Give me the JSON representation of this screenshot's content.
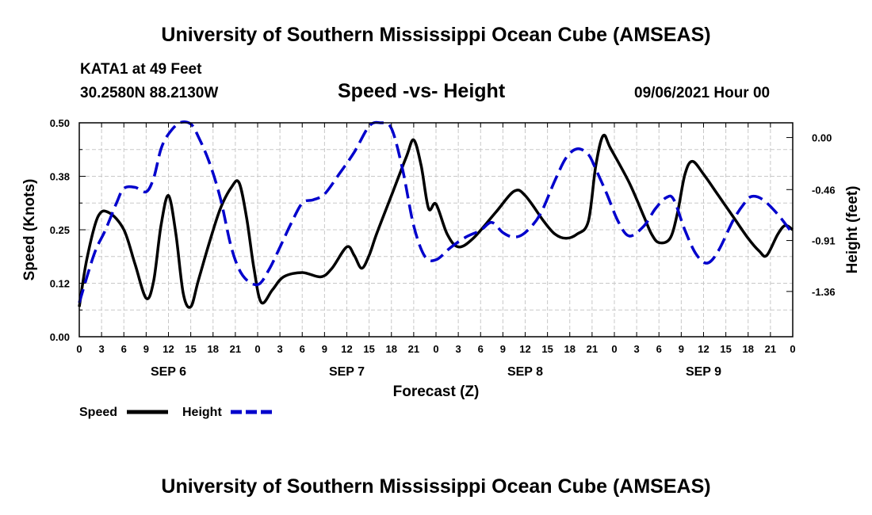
{
  "header": {
    "title": "University of Southern Mississippi Ocean Cube (AMSEAS)",
    "station": "KATA1 at 49 Feet",
    "coords": "30.2580N  88.2130W",
    "subtitle": "Speed -vs- Height",
    "datetime": "09/06/2021 Hour 00"
  },
  "footer": {
    "title": "University of Southern Mississippi Ocean Cube (AMSEAS)"
  },
  "chart_data": {
    "type": "line",
    "xlabel": "Forecast (Z)",
    "ylabel_left": "Speed (Knots)",
    "ylabel_right": "Height (feet)",
    "xlim": [
      0,
      96
    ],
    "ylim_left": [
      0,
      0.5
    ],
    "ylim_right": [
      -1.76,
      0.13
    ],
    "grid": true,
    "left_ticks": [
      {
        "value": 0.0,
        "label": "0.00"
      },
      {
        "value": 0.125,
        "label": "0.12"
      },
      {
        "value": 0.25,
        "label": "0.25"
      },
      {
        "value": 0.375,
        "label": "0.38"
      },
      {
        "value": 0.5,
        "label": "0.50"
      }
    ],
    "right_ticks": [
      {
        "value": 0.0,
        "label": "0.00"
      },
      {
        "value": -0.46,
        "label": "-0.46"
      },
      {
        "value": -0.91,
        "label": "-0.91"
      },
      {
        "value": -1.36,
        "label": "-1.36"
      }
    ],
    "x_tick_labels": [
      "0",
      "3",
      "6",
      "9",
      "12",
      "15",
      "18",
      "21",
      "0",
      "3",
      "6",
      "9",
      "12",
      "15",
      "18",
      "21",
      "0",
      "3",
      "6",
      "9",
      "12",
      "15",
      "18",
      "21",
      "0",
      "3",
      "6",
      "9",
      "12",
      "15",
      "18",
      "21",
      "0"
    ],
    "date_labels": [
      {
        "hour": 12,
        "label": "SEP 6"
      },
      {
        "hour": 36,
        "label": "SEP 7"
      },
      {
        "hour": 60,
        "label": "SEP 8"
      },
      {
        "hour": 84,
        "label": "SEP 9"
      }
    ],
    "legend": {
      "speed_label": "Speed",
      "height_label": "Height",
      "placement": "bottom-left"
    },
    "series": [
      {
        "name": "Speed",
        "axis": "left",
        "color": "#000000",
        "dash": "solid",
        "points": [
          [
            0,
            0.07
          ],
          [
            1,
            0.18
          ],
          [
            2.5,
            0.28
          ],
          [
            4,
            0.29
          ],
          [
            6,
            0.25
          ],
          [
            7.5,
            0.17
          ],
          [
            9,
            0.09
          ],
          [
            10,
            0.13
          ],
          [
            11,
            0.26
          ],
          [
            12,
            0.33
          ],
          [
            13,
            0.24
          ],
          [
            14,
            0.1
          ],
          [
            15,
            0.07
          ],
          [
            16,
            0.13
          ],
          [
            17.5,
            0.22
          ],
          [
            19,
            0.3
          ],
          [
            20.5,
            0.35
          ],
          [
            21.5,
            0.36
          ],
          [
            22.5,
            0.28
          ],
          [
            23.5,
            0.16
          ],
          [
            24.5,
            0.08
          ],
          [
            26,
            0.11
          ],
          [
            27.5,
            0.14
          ],
          [
            30,
            0.15
          ],
          [
            32.5,
            0.14
          ],
          [
            34,
            0.16
          ],
          [
            36,
            0.21
          ],
          [
            37,
            0.19
          ],
          [
            38,
            0.16
          ],
          [
            39,
            0.19
          ],
          [
            40,
            0.24
          ],
          [
            42,
            0.33
          ],
          [
            44,
            0.42
          ],
          [
            45,
            0.46
          ],
          [
            46,
            0.4
          ],
          [
            47,
            0.3
          ],
          [
            48,
            0.31
          ],
          [
            49.5,
            0.24
          ],
          [
            51,
            0.21
          ],
          [
            53,
            0.23
          ],
          [
            56,
            0.29
          ],
          [
            58.5,
            0.34
          ],
          [
            60,
            0.33
          ],
          [
            62.5,
            0.27
          ],
          [
            64,
            0.24
          ],
          [
            65.5,
            0.23
          ],
          [
            67,
            0.24
          ],
          [
            68.5,
            0.27
          ],
          [
            69.5,
            0.4
          ],
          [
            70.5,
            0.47
          ],
          [
            71.5,
            0.44
          ],
          [
            74,
            0.36
          ],
          [
            76,
            0.28
          ],
          [
            77,
            0.24
          ],
          [
            78,
            0.22
          ],
          [
            79.5,
            0.23
          ],
          [
            80.5,
            0.29
          ],
          [
            81.5,
            0.38
          ],
          [
            82.5,
            0.41
          ],
          [
            84,
            0.38
          ],
          [
            86,
            0.33
          ],
          [
            88,
            0.28
          ],
          [
            90,
            0.23
          ],
          [
            91.5,
            0.2
          ],
          [
            92.5,
            0.19
          ],
          [
            94,
            0.24
          ],
          [
            95,
            0.26
          ],
          [
            96,
            0.25
          ]
        ]
      },
      {
        "name": "Height",
        "axis": "right",
        "color": "#0000cc",
        "dash": "dashed",
        "points": [
          [
            0,
            -1.46
          ],
          [
            2,
            -1.03
          ],
          [
            3.5,
            -0.82
          ],
          [
            5,
            -0.58
          ],
          [
            6,
            -0.45
          ],
          [
            7.5,
            -0.44
          ],
          [
            9,
            -0.48
          ],
          [
            10,
            -0.36
          ],
          [
            11,
            -0.1
          ],
          [
            12,
            0.03
          ],
          [
            13.5,
            0.13
          ],
          [
            15,
            0.12
          ],
          [
            16,
            0.01
          ],
          [
            17.5,
            -0.22
          ],
          [
            19,
            -0.54
          ],
          [
            20.5,
            -0.98
          ],
          [
            22,
            -1.22
          ],
          [
            24,
            -1.3
          ],
          [
            25.5,
            -1.17
          ],
          [
            27,
            -0.97
          ],
          [
            28.5,
            -0.76
          ],
          [
            30,
            -0.58
          ],
          [
            31.5,
            -0.55
          ],
          [
            33,
            -0.5
          ],
          [
            35,
            -0.32
          ],
          [
            37,
            -0.13
          ],
          [
            39,
            0.1
          ],
          [
            40.5,
            0.18
          ],
          [
            42,
            0.08
          ],
          [
            43.5,
            -0.28
          ],
          [
            45,
            -0.78
          ],
          [
            46.5,
            -1.05
          ],
          [
            48,
            -1.08
          ],
          [
            50,
            -0.97
          ],
          [
            52,
            -0.88
          ],
          [
            54,
            -0.82
          ],
          [
            55.5,
            -0.75
          ],
          [
            57,
            -0.84
          ],
          [
            58.5,
            -0.88
          ],
          [
            60,
            -0.84
          ],
          [
            62,
            -0.68
          ],
          [
            64,
            -0.38
          ],
          [
            65.5,
            -0.18
          ],
          [
            67,
            -0.1
          ],
          [
            68.5,
            -0.15
          ],
          [
            69.5,
            -0.28
          ],
          [
            71,
            -0.5
          ],
          [
            72.5,
            -0.74
          ],
          [
            74,
            -0.87
          ],
          [
            76,
            -0.78
          ],
          [
            77.5,
            -0.63
          ],
          [
            79,
            -0.53
          ],
          [
            80,
            -0.55
          ],
          [
            81.5,
            -0.82
          ],
          [
            83,
            -1.03
          ],
          [
            84.5,
            -1.11
          ],
          [
            86,
            -1.0
          ],
          [
            88,
            -0.73
          ],
          [
            89.5,
            -0.58
          ],
          [
            90.5,
            -0.52
          ],
          [
            92,
            -0.55
          ],
          [
            94,
            -0.68
          ],
          [
            96,
            -0.85
          ]
        ]
      }
    ]
  }
}
